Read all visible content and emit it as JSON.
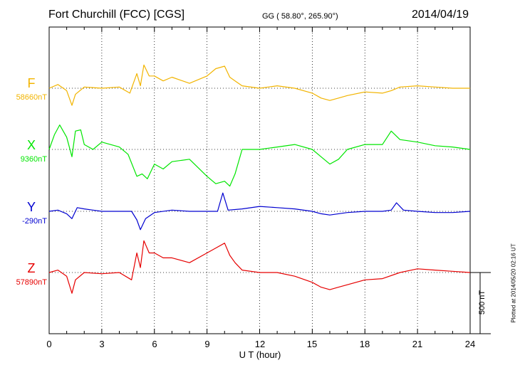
{
  "header": {
    "station": "Fort Churchill (FCC)  [CGS]",
    "coords": "GG ( 58.80°, 265.90°)",
    "date": "2014/04/19"
  },
  "colors": {
    "F": "#f2b400",
    "X": "#00e600",
    "Y": "#0000d0",
    "Z": "#e60000"
  },
  "chart_data": {
    "type": "line",
    "xlabel": "U T (hour)",
    "xlim": [
      0,
      24
    ],
    "x_ticks": [
      "0",
      "3",
      "6",
      "9",
      "12",
      "15",
      "18",
      "21",
      "24"
    ],
    "scale_bar_label": "500 nT",
    "footer_note": "Plotted at 2014/05/20 02:16 UT",
    "grid": true,
    "series": [
      {
        "name": "F",
        "baseline_label": "58660nT",
        "color": "#f2b400",
        "x": [
          0,
          0.5,
          1.0,
          1.3,
          1.5,
          2.0,
          3.0,
          4.0,
          4.6,
          5.0,
          5.2,
          5.4,
          5.7,
          6.0,
          6.5,
          7.0,
          8.0,
          9.0,
          9.5,
          10.0,
          10.3,
          10.6,
          11.0,
          12.0,
          13.0,
          14.0,
          15.0,
          15.5,
          16.0,
          16.5,
          17.0,
          18.0,
          19.0,
          19.5,
          20.0,
          21.0,
          22.0,
          23.0,
          24.0
        ],
        "values": [
          0,
          30,
          -20,
          -140,
          -50,
          10,
          0,
          10,
          -40,
          120,
          20,
          190,
          100,
          100,
          60,
          90,
          40,
          100,
          160,
          180,
          90,
          60,
          20,
          0,
          20,
          0,
          -40,
          -80,
          -100,
          -80,
          -60,
          -30,
          -40,
          -20,
          10,
          20,
          10,
          0,
          0
        ]
      },
      {
        "name": "X",
        "baseline_label": "9360nT",
        "color": "#00e600",
        "x": [
          0,
          0.3,
          0.6,
          1.0,
          1.3,
          1.5,
          1.8,
          2.0,
          2.5,
          3.0,
          4.0,
          4.5,
          5.0,
          5.3,
          5.6,
          6.0,
          6.5,
          7.0,
          8.0,
          9.0,
          9.5,
          10.0,
          10.3,
          10.6,
          11.0,
          12.0,
          13.0,
          14.0,
          15.0,
          15.5,
          16.0,
          16.5,
          17.0,
          18.0,
          19.0,
          19.5,
          20.0,
          21.0,
          22.0,
          23.0,
          24.0
        ],
        "values": [
          0,
          120,
          200,
          100,
          -60,
          150,
          160,
          40,
          0,
          60,
          20,
          -40,
          -220,
          -200,
          -240,
          -120,
          -160,
          -100,
          -80,
          -220,
          -280,
          -260,
          -300,
          -200,
          0,
          0,
          20,
          40,
          0,
          -60,
          -120,
          -80,
          0,
          40,
          40,
          150,
          80,
          60,
          30,
          20,
          0
        ]
      },
      {
        "name": "Y",
        "baseline_label": "-290nT",
        "color": "#0000d0",
        "x": [
          0,
          0.5,
          1.0,
          1.3,
          1.6,
          2.0,
          3.0,
          4.0,
          4.7,
          5.0,
          5.2,
          5.5,
          6.0,
          7.0,
          8.0,
          9.0,
          9.6,
          9.9,
          10.2,
          11.0,
          12.0,
          13.0,
          14.0,
          15.0,
          15.5,
          16.0,
          17.0,
          18.0,
          19.0,
          19.5,
          19.8,
          20.2,
          21.0,
          22.0,
          23.0,
          24.0
        ],
        "values": [
          0,
          10,
          -20,
          -60,
          30,
          20,
          0,
          0,
          0,
          -70,
          -150,
          -60,
          -10,
          10,
          0,
          0,
          0,
          150,
          10,
          20,
          40,
          30,
          20,
          0,
          -20,
          -30,
          -10,
          0,
          0,
          10,
          70,
          10,
          0,
          -10,
          -10,
          0
        ]
      },
      {
        "name": "Z",
        "baseline_label": "57890nT",
        "color": "#e60000",
        "x": [
          0,
          0.5,
          1.0,
          1.3,
          1.5,
          2.0,
          3.0,
          4.0,
          4.7,
          5.0,
          5.2,
          5.4,
          5.7,
          6.0,
          6.5,
          7.0,
          8.0,
          9.0,
          9.5,
          10.0,
          10.3,
          10.6,
          11.0,
          12.0,
          13.0,
          14.0,
          15.0,
          15.5,
          16.0,
          16.5,
          17.0,
          18.0,
          19.0,
          20.0,
          21.0,
          22.0,
          23.0,
          24.0
        ],
        "values": [
          0,
          20,
          -30,
          -170,
          -60,
          0,
          -10,
          0,
          -60,
          160,
          40,
          260,
          160,
          160,
          120,
          120,
          80,
          160,
          200,
          240,
          140,
          80,
          20,
          0,
          0,
          -30,
          -80,
          -120,
          -140,
          -120,
          -100,
          -60,
          -50,
          0,
          30,
          20,
          10,
          0
        ]
      }
    ]
  }
}
